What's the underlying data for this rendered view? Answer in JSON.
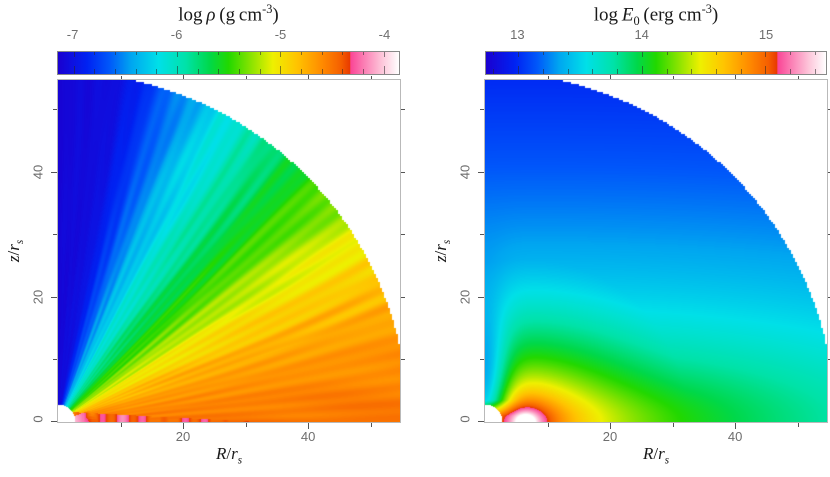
{
  "figure": {
    "background": "#ffffff",
    "tick_color": "#555555",
    "tick_label_color": "#6e6e6e",
    "title_color": "#1a1a1a",
    "colormap_stops": [
      [
        0.0,
        "#1a00d0"
      ],
      [
        0.085,
        "#0022f2"
      ],
      [
        0.15,
        "#0057fa"
      ],
      [
        0.215,
        "#00a6f0"
      ],
      [
        0.295,
        "#00e0e8"
      ],
      [
        0.375,
        "#00e2a8"
      ],
      [
        0.445,
        "#00d84a"
      ],
      [
        0.5,
        "#22d800"
      ],
      [
        0.57,
        "#90e400"
      ],
      [
        0.63,
        "#eef000"
      ],
      [
        0.7,
        "#ffc400"
      ],
      [
        0.775,
        "#ff8a00"
      ],
      [
        0.83,
        "#f55f00"
      ],
      [
        0.856,
        "#e83a00"
      ],
      [
        0.858,
        "#fa4596"
      ],
      [
        0.9,
        "#fb82b6"
      ],
      [
        0.95,
        "#fdc6da"
      ],
      [
        1.0,
        "#ffffff"
      ]
    ]
  },
  "chart_data": [
    {
      "type": "heatmap",
      "panel": "density",
      "title_segments": [
        {
          "t": "log "
        },
        {
          "t": "ρ",
          "i": true
        },
        {
          "t": " (g cm"
        },
        {
          "t": "-3",
          "sup": true
        },
        {
          "t": ")"
        }
      ],
      "colorbar": {
        "range": [
          -7.15,
          -3.85
        ],
        "major_ticks": [
          -7,
          -6,
          -5,
          -4
        ],
        "tick_labels": [
          "-7",
          "-6",
          "-5",
          "-4"
        ],
        "minor_tick_step": 0.2,
        "units": "g cm^-3"
      },
      "axes": {
        "x_label_segments": [
          {
            "t": "R",
            "i": true
          },
          {
            "t": "/"
          },
          {
            "t": "r",
            "i": true
          },
          {
            "t": "s",
            "i": true,
            "sub": true
          }
        ],
        "y_label_segments": [
          {
            "t": "z",
            "i": true
          },
          {
            "t": "/"
          },
          {
            "t": "r",
            "i": true
          },
          {
            "t": "s",
            "i": true,
            "sub": true
          }
        ],
        "x_tick_values": [
          20,
          40
        ],
        "x_tick_labels": [
          "20",
          "40"
        ],
        "y_tick_values": [
          0,
          20,
          40
        ],
        "y_tick_labels": [
          "0",
          "20",
          "40"
        ],
        "minor_tick_step": 10,
        "axis_max": 54.7,
        "arc_radius": 56,
        "cutout_radius": 2.8
      },
      "field_model": {
        "kind": "angular",
        "comment": "log density vs polar angle (deg from z-axis), streaky radial filaments, dense red/pink disk at equator",
        "angle_profile_deg": [
          [
            0,
            -7.1
          ],
          [
            10,
            -7.03
          ],
          [
            16,
            -6.76
          ],
          [
            22,
            -6.45
          ],
          [
            30,
            -6.1
          ],
          [
            38,
            -5.8
          ],
          [
            45,
            -5.55
          ],
          [
            52,
            -5.3
          ],
          [
            60,
            -5.02
          ],
          [
            68,
            -4.8
          ],
          [
            76,
            -4.66
          ],
          [
            84,
            -4.56
          ],
          [
            90,
            -4.5
          ]
        ],
        "noise_amp": 0.1,
        "inner_equator_boost": {
          "radius": 11,
          "amount": 0.25
        },
        "disk": {
          "r_out": 32,
          "height": 1.7,
          "value": -4.44
        },
        "cutout_pink": {
          "radius": 5.5,
          "angle_min_deg": 70,
          "value": -4.05
        }
      }
    },
    {
      "type": "heatmap",
      "panel": "radiation-energy",
      "title_segments": [
        {
          "t": "log "
        },
        {
          "t": "E",
          "i": true
        },
        {
          "t": "0",
          "sub": true
        },
        {
          "t": " (erg cm"
        },
        {
          "t": "-3",
          "sup": true
        },
        {
          "t": ")"
        }
      ],
      "colorbar": {
        "range": [
          12.74,
          15.49
        ],
        "major_ticks": [
          13,
          14,
          15
        ],
        "tick_labels": [
          "13",
          "14",
          "15"
        ],
        "minor_tick_step": 0.2,
        "units": "erg cm^-3"
      },
      "axes": {
        "x_label_segments": [
          {
            "t": "R",
            "i": true
          },
          {
            "t": "/"
          },
          {
            "t": "r",
            "i": true
          },
          {
            "t": "s",
            "i": true,
            "sub": true
          }
        ],
        "y_label_segments": [
          {
            "t": "z",
            "i": true
          },
          {
            "t": "/"
          },
          {
            "t": "r",
            "i": true
          },
          {
            "t": "s",
            "i": true,
            "sub": true
          }
        ],
        "x_tick_values": [
          20,
          40
        ],
        "x_tick_labels": [
          "20",
          "40"
        ],
        "y_tick_values": [
          0,
          20,
          40
        ],
        "y_tick_labels": [
          "0",
          "20",
          "40"
        ],
        "minor_tick_step": 10,
        "axis_max": 54.7,
        "arc_radius": 56,
        "cutout_radius": 2.8
      },
      "field_model": {
        "kind": "radial_source",
        "comment": "log E0 decreasing with distance from hot spot on equator at R=6.5; contours flattened toward pole; low-E notch along rotation axis",
        "source_R": 6.5,
        "v0": 15.72,
        "slope_dex_per_dex": 1.15,
        "flatten_min": 1.15,
        "flatten_gain": 3.05,
        "flatten_scale": 26,
        "axis_shadow": {
          "amp": 1.15,
          "r_width": 3.6,
          "z_on": 1.0,
          "z_ramp": 2.5,
          "z_decay": 15
        }
      }
    }
  ]
}
